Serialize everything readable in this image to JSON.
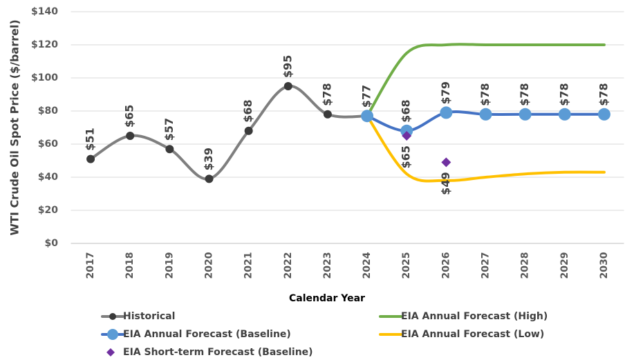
{
  "chart_data": {
    "type": "line",
    "y_label": "WTI Crude Oil Spot Price ($/barrel)",
    "x_label": "Calendar Year",
    "categories": [
      "2017",
      "2018",
      "2019",
      "2020",
      "2021",
      "2022",
      "2023",
      "2024",
      "2025",
      "2026",
      "2027",
      "2028",
      "2029",
      "2030"
    ],
    "ylim": [
      0,
      140
    ],
    "yticks": [
      {
        "value": 0,
        "label": "$0"
      },
      {
        "value": 20,
        "label": "$20"
      },
      {
        "value": 40,
        "label": "$40"
      },
      {
        "value": 60,
        "label": "$60"
      },
      {
        "value": 80,
        "label": "$80"
      },
      {
        "value": 100,
        "label": "$100"
      },
      {
        "value": 120,
        "label": "$120"
      },
      {
        "value": 140,
        "label": "$140"
      }
    ],
    "grid": true,
    "series": [
      {
        "name": "Historical",
        "color": "#7f7f7f",
        "marker_color": "#3a3a3a",
        "marker": "circle",
        "line": true,
        "values": [
          51,
          65,
          57,
          39,
          68,
          95,
          78,
          77,
          null,
          null,
          null,
          null,
          null,
          null
        ],
        "value_labels": [
          "$51",
          "$65",
          "$57",
          "$39",
          "$68",
          "$95",
          "$78",
          null,
          null,
          null,
          null,
          null,
          null,
          null
        ]
      },
      {
        "name": "EIA Annual Forecast (High)",
        "color": "#70ad47",
        "marker": "none",
        "line": true,
        "values": [
          null,
          null,
          null,
          null,
          null,
          null,
          null,
          77,
          115,
          120,
          120,
          120,
          120,
          120
        ]
      },
      {
        "name": "EIA Annual Forecast (Baseline)",
        "color": "#4472c4",
        "marker_color": "#5b9bd5",
        "marker": "circle",
        "line": true,
        "values": [
          null,
          null,
          null,
          null,
          null,
          null,
          null,
          77,
          68,
          79,
          78,
          78,
          78,
          78
        ],
        "value_labels": [
          null,
          null,
          null,
          null,
          null,
          null,
          null,
          "$77",
          "$68",
          "$79",
          "$78",
          "$78",
          "$78",
          "$78"
        ]
      },
      {
        "name": "EIA Annual Forecast (Low)",
        "color": "#ffc000",
        "marker": "none",
        "line": true,
        "values": [
          null,
          null,
          null,
          null,
          null,
          null,
          null,
          77,
          42,
          38,
          40,
          42,
          43,
          43
        ]
      },
      {
        "name": "EIA Short-term Forecast (Baseline)",
        "color": "#7030a0",
        "marker": "diamond",
        "line": false,
        "values": [
          null,
          null,
          null,
          null,
          null,
          null,
          null,
          null,
          65,
          49,
          null,
          null,
          null,
          null
        ],
        "value_labels": [
          null,
          null,
          null,
          null,
          null,
          null,
          null,
          null,
          "$65",
          "$49",
          null,
          null,
          null,
          null
        ],
        "label_position": "below"
      }
    ]
  }
}
